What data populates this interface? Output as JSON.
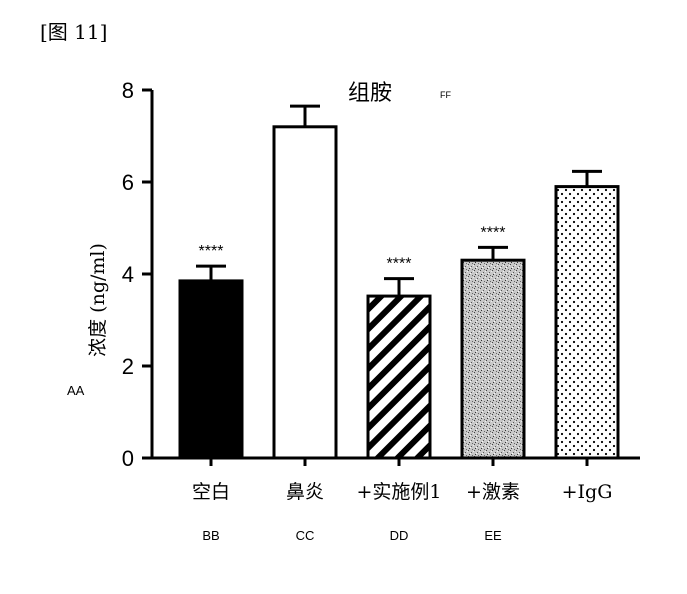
{
  "figure_label": "[图 11]",
  "chart_data": {
    "type": "bar",
    "title": "组胺",
    "title_code": "FF",
    "ylabel": "浓度 (ng/ml)",
    "ylabel_code": "AA",
    "ylim": [
      0,
      8
    ],
    "yticks": [
      0,
      2,
      4,
      6,
      8
    ],
    "categories": [
      "空白",
      "鼻炎",
      "+实施例1",
      "+激素",
      "+IgG"
    ],
    "category_codes": [
      "BB",
      "CC",
      "DD",
      "EE",
      ""
    ],
    "values": [
      3.85,
      7.2,
      3.52,
      4.3,
      5.9
    ],
    "errors": [
      0.32,
      0.45,
      0.38,
      0.28,
      0.33
    ],
    "significance": [
      "****",
      "",
      "****",
      "****",
      ""
    ],
    "fills": [
      "solid-black",
      "white",
      "diagonal-stripes",
      "dense-speckle",
      "sparse-dots"
    ],
    "grid": false
  }
}
